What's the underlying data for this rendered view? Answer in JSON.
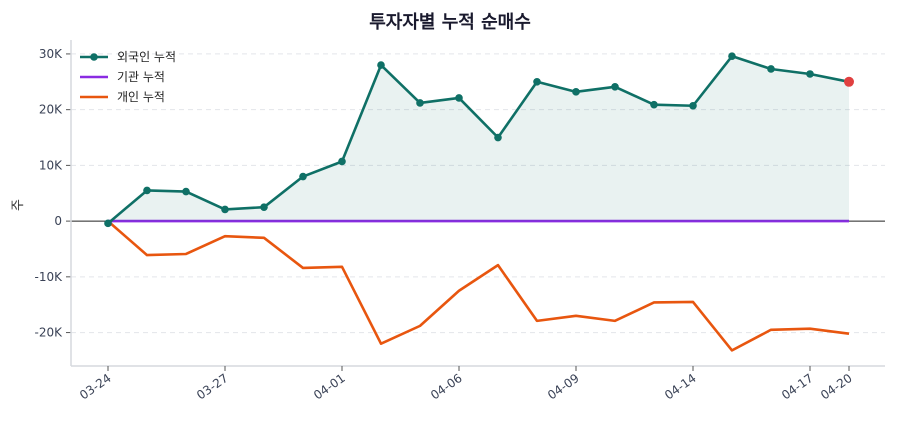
{
  "chart_data": {
    "type": "line",
    "title": "투자자별 누적 순매수",
    "ylabel": "주",
    "xlabel": "",
    "x": [
      "03-24",
      "03-25",
      "03-26",
      "03-27",
      "03-30",
      "03-31",
      "04-01",
      "04-02",
      "04-03",
      "04-06",
      "04-07",
      "04-08",
      "04-09",
      "04-10",
      "04-13",
      "04-14",
      "04-15",
      "04-16",
      "04-17",
      "04-20"
    ],
    "x_tick_labels": [
      "03-24",
      "03-27",
      "04-01",
      "04-06",
      "04-09",
      "04-14",
      "04-17",
      "04-20"
    ],
    "y_tick_values": [
      -20000,
      -10000,
      0,
      10000,
      20000,
      30000
    ],
    "y_tick_labels": [
      "-20K",
      "-10K",
      "0",
      "10K",
      "20K",
      "30K"
    ],
    "ylim": [
      -26000,
      32500
    ],
    "grid": "horizontal dashed",
    "legend": "top-left",
    "series": [
      {
        "name": "외국인 누적",
        "color": "#0f7066",
        "markers": true,
        "fill": true,
        "values": [
          -400,
          5500,
          5300,
          2100,
          2500,
          8000,
          10700,
          28000,
          21200,
          22100,
          15000,
          25000,
          23200,
          24100,
          20900,
          20700,
          29600,
          27300,
          26400,
          25000
        ]
      },
      {
        "name": "기관 누적",
        "color": "#8a2be2",
        "markers": false,
        "values": [
          0,
          0,
          0,
          0,
          0,
          0,
          0,
          0,
          0,
          0,
          0,
          0,
          0,
          0,
          0,
          0,
          0,
          0,
          0,
          0
        ]
      },
      {
        "name": "개인 누적",
        "color": "#e8560f",
        "markers": false,
        "values": [
          0,
          -6100,
          -5900,
          -2700,
          -3000,
          -8400,
          -8200,
          -22000,
          -18800,
          -12500,
          -7900,
          -17900,
          -17000,
          -17900,
          -14600,
          -14500,
          -23200,
          -19500,
          -19300,
          -20200
        ]
      }
    ],
    "last_point_highlight_color": "#e04040"
  }
}
